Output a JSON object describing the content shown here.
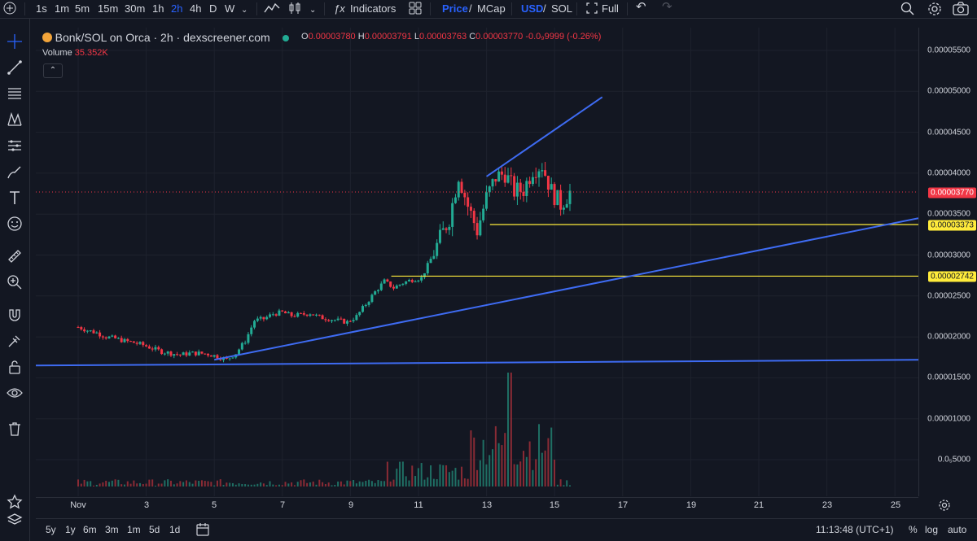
{
  "toolbar": {
    "intervals": [
      "1s",
      "1m",
      "5m",
      "15m",
      "30m",
      "1h",
      "2h",
      "4h",
      "D",
      "W"
    ],
    "active_interval": "2h",
    "indicators_label": "Indicators",
    "price_label": "Price",
    "slash1": "/",
    "mcap_label": "MCap",
    "usd_label": "USD",
    "slash2": "/",
    "sol_label": "SOL",
    "full_label": "Full"
  },
  "legend": {
    "title": "Bonk/SOL on Orca · 2h · dexscreener.com",
    "o": "0.00003780",
    "h": "0.00003791",
    "l": "0.00003763",
    "c": "0.00003770",
    "change": "-0.0₉9999 (-0.26%)",
    "o_label": "O",
    "h_label": "H",
    "l_label": "L",
    "c_label": "C",
    "volume_label": "Volume",
    "volume_value": "35.352K",
    "collapse": "⌃"
  },
  "y_axis": {
    "ticks": [
      "0.00005500",
      "0.00005000",
      "0.00004500",
      "0.00004000",
      "0.00003500",
      "0.00003000",
      "0.00002500",
      "0.00002000",
      "0.00001500",
      "0.00001000",
      "0.0₅5000"
    ],
    "tick_values": [
      5.5,
      5.0,
      4.5,
      4.0,
      3.5,
      3.0,
      2.5,
      2.0,
      1.5,
      1.0,
      0.5
    ],
    "current_price_tag": "0.00003770",
    "line1_tag": "0.00003373",
    "line2_tag": "0.00002742",
    "colors": {
      "current": "#f23645",
      "levels": "#ffeb3b"
    }
  },
  "x_axis": {
    "labels": [
      "Nov",
      "3",
      "5",
      "7",
      "9",
      "11",
      "13",
      "15",
      "17",
      "19",
      "21",
      "23",
      "25"
    ]
  },
  "bottom": {
    "ranges": [
      "5y",
      "1y",
      "6m",
      "3m",
      "1m",
      "5d",
      "1d"
    ],
    "time": "11:13:48 (UTC+1)",
    "percent": "%",
    "log": "log",
    "auto": "auto"
  },
  "icons": [
    "crosshair-icon",
    "trendline-icon",
    "fib-icon",
    "pattern-icon",
    "measure-icon",
    "brush-icon",
    "text-icon",
    "emoji-icon",
    "ruler-icon",
    "zoom-icon",
    "magnet-icon",
    "lock-drawing-icon",
    "unlock-icon",
    "eye-icon",
    "trash-icon",
    "star-icon",
    "layers-icon"
  ],
  "chart_data": {
    "type": "candlestick",
    "pair": "Bonk/SOL",
    "interval": "2h",
    "y_unit": "1e-5 SOL",
    "ylim": [
      0.0,
      5.8
    ],
    "x_range_days": [
      "Nov 1",
      "Nov 26"
    ],
    "series_close_approx": [
      2.12,
      2.08,
      2.05,
      2.0,
      1.98,
      1.95,
      1.93,
      1.9,
      1.86,
      1.82,
      1.8,
      1.78,
      1.8,
      1.8,
      1.79,
      1.76,
      1.72,
      1.8,
      1.95,
      2.2,
      2.22,
      2.28,
      2.3,
      2.26,
      2.27,
      2.29,
      2.24,
      2.22,
      2.2,
      2.18,
      2.25,
      2.4,
      2.55,
      2.68,
      2.6,
      2.66,
      2.7,
      2.72,
      2.95,
      3.2,
      3.45,
      3.98,
      3.6,
      3.3,
      3.7,
      3.95,
      4.0,
      3.78,
      3.8,
      4.05,
      4.1,
      3.78,
      3.62,
      3.77
    ],
    "volume_max": 1.45,
    "drawings": {
      "horizontal_lines": [
        3.373,
        2.742
      ],
      "trendlines": [
        {
          "from": [
            "Nov 5",
            1.72
          ],
          "to": [
            "Nov 26",
            3.45
          ]
        },
        {
          "from": [
            "Nov 1",
            1.65
          ],
          "to": [
            "Nov 26",
            1.72
          ]
        },
        {
          "from": [
            "Nov 13",
            3.96
          ],
          "to": [
            "Nov 16.5",
            4.93
          ]
        }
      ]
    }
  }
}
